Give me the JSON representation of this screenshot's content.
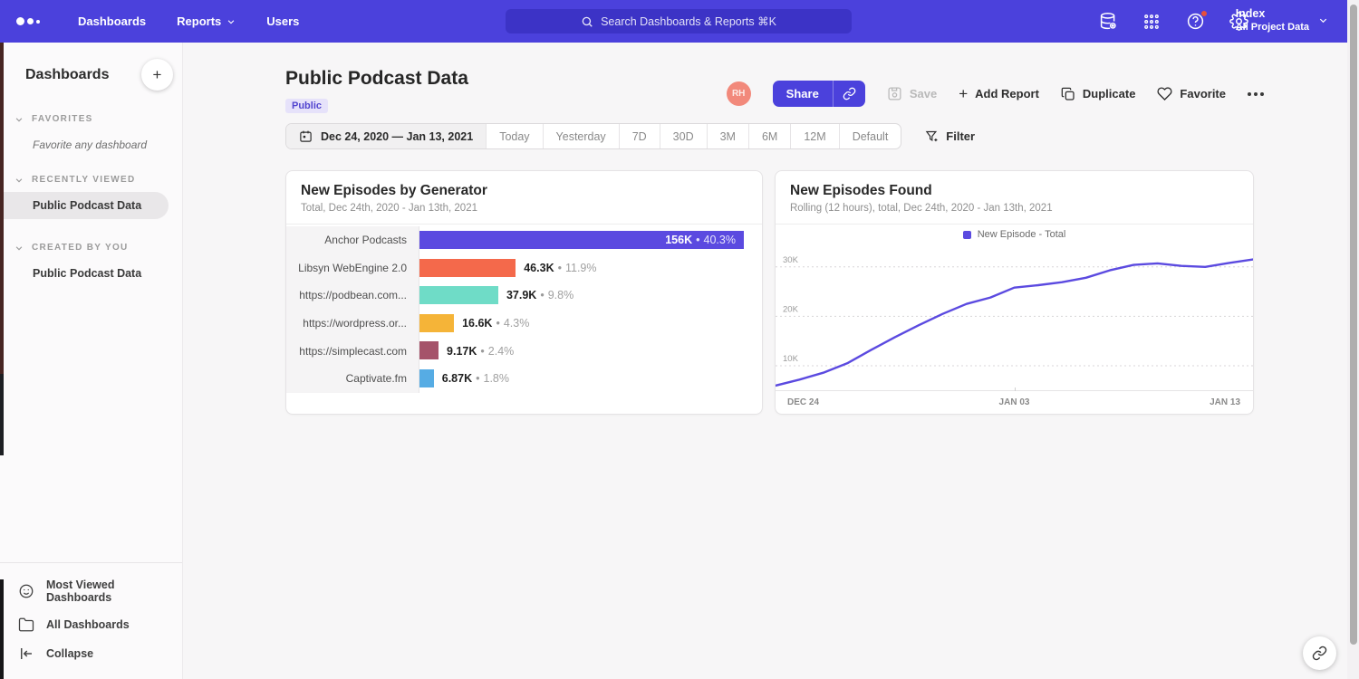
{
  "topbar": {
    "nav": [
      "Dashboards",
      "Reports",
      "Users"
    ],
    "search_placeholder": "Search Dashboards & Reports ⌘K",
    "project": {
      "name": "Index",
      "subtitle": "All Project Data"
    }
  },
  "sidebar": {
    "title": "Dashboards",
    "sections": [
      {
        "label": "FAVORITES",
        "empty_text": "Favorite any dashboard",
        "items": []
      },
      {
        "label": "RECENTLY VIEWED",
        "items": [
          {
            "label": "Public Podcast Data",
            "selected": true
          }
        ]
      },
      {
        "label": "CREATED BY YOU",
        "items": [
          {
            "label": "Public Podcast Data",
            "selected": false
          }
        ]
      }
    ],
    "footer": [
      {
        "icon": "smiley-icon",
        "label": "Most Viewed Dashboards"
      },
      {
        "icon": "folder-icon",
        "label": "All Dashboards"
      },
      {
        "icon": "collapse-icon",
        "label": "Collapse"
      }
    ]
  },
  "header": {
    "title": "Public Podcast Data",
    "badge": "Public",
    "avatar_initials": "RH",
    "share_label": "Share",
    "save_label": "Save",
    "add_report_label": "Add Report",
    "duplicate_label": "Duplicate",
    "favorite_label": "Favorite"
  },
  "toolbar": {
    "date_range": "Dec 24, 2020 — Jan 13, 2021",
    "presets": [
      "Today",
      "Yesterday",
      "7D",
      "30D",
      "3M",
      "6M",
      "12M",
      "Default"
    ],
    "filter_label": "Filter"
  },
  "chart_data": [
    {
      "type": "bar",
      "orientation": "horizontal",
      "title": "New Episodes by Generator",
      "subtitle": "Total, Dec 24th, 2020 - Jan 13th, 2021",
      "categories": [
        "Anchor Podcasts",
        "Libsyn WebEngine 2.0",
        "https://podbean.com...",
        "https://wordpress.or...",
        "https://simplecast.com",
        "Captivate.fm"
      ],
      "values": [
        156000,
        46300,
        37900,
        16600,
        9170,
        6870
      ],
      "value_labels": [
        "156K",
        "46.3K",
        "37.9K",
        "16.6K",
        "9.17K",
        "6.87K"
      ],
      "pct_labels": [
        "40.3%",
        "11.9%",
        "9.8%",
        "4.3%",
        "2.4%",
        "1.8%"
      ],
      "colors": [
        "#5b4ae0",
        "#f4694b",
        "#6fdcc7",
        "#f5b438",
        "#a5536a",
        "#56ace4"
      ],
      "xlim": [
        0,
        165000
      ]
    },
    {
      "type": "line",
      "title": "New Episodes Found",
      "subtitle": "Rolling (12 hours), total, Dec 24th, 2020 - Jan 13th, 2021",
      "legend": [
        {
          "label": "New Episode - Total",
          "color": "#5b4ae0"
        }
      ],
      "line_color": "#5b4ae0",
      "x_ticks": [
        "DEC 24",
        "JAN 03",
        "JAN 13"
      ],
      "y_ticks": [
        {
          "label": "10K",
          "value": 10000
        },
        {
          "label": "20K",
          "value": 20000
        },
        {
          "label": "30K",
          "value": 30000
        }
      ],
      "ylim": [
        4700,
        34900
      ],
      "grid": "dotted-horizontal",
      "legend_position": "top-center",
      "values": [
        6000,
        7200,
        8600,
        10500,
        13200,
        15800,
        18200,
        20500,
        22500,
        23800,
        25800,
        26300,
        26900,
        27800,
        29300,
        30400,
        30700,
        30200,
        30000,
        30800,
        31500
      ]
    }
  ],
  "floating": {
    "link_button_icon": "link-icon"
  }
}
